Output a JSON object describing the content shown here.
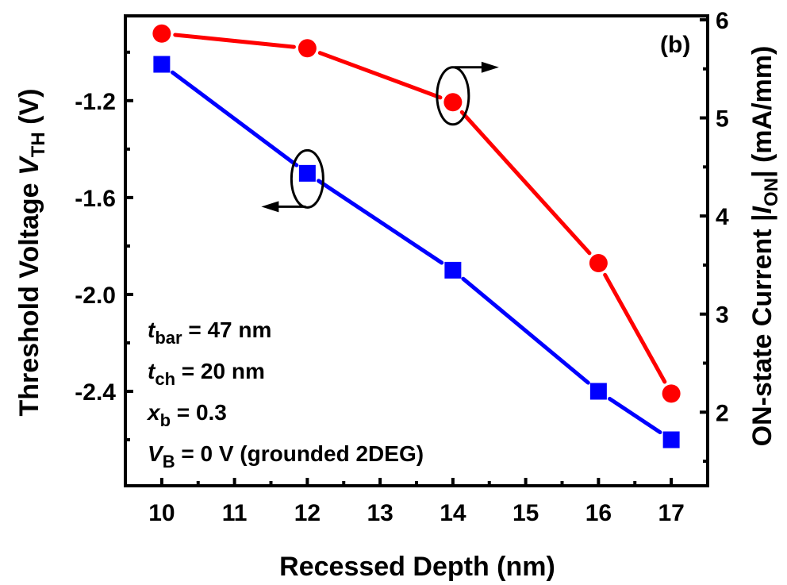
{
  "chart_data": {
    "type": "line",
    "panel_label": "(b)",
    "title": "",
    "xlabel": "Recessed Depth (nm)",
    "ylabel_left": {
      "main": "Threshold Voltage ",
      "var": "V",
      "sub": "TH",
      "tail": " (V)"
    },
    "ylabel_right": {
      "main": "ON-state Current |",
      "var": "I",
      "sub": "ON",
      "tail": "| (mA/mm)"
    },
    "x": [
      10,
      12,
      14,
      16,
      17
    ],
    "xlim": [
      9.5,
      17.5
    ],
    "xticks": [
      10,
      11,
      12,
      13,
      14,
      15,
      16,
      17
    ],
    "xtick_labels": [
      "10",
      "11",
      "12",
      "13",
      "14",
      "15",
      "16",
      "17"
    ],
    "ylim_left": [
      -2.79,
      -0.85
    ],
    "yticks_left": [
      -1.2,
      -1.6,
      -2.0,
      -2.4
    ],
    "ytick_labels_left": [
      "-1.2",
      "-1.6",
      "-2.0",
      "-2.4"
    ],
    "yminor_left": [
      -1.0,
      -1.4,
      -1.8,
      -2.2,
      -2.6
    ],
    "ylim_right": [
      1.25,
      6.04
    ],
    "yticks_right": [
      6,
      5,
      4,
      3,
      2
    ],
    "ytick_labels_right": [
      "6",
      "5",
      "4",
      "3",
      "2"
    ],
    "yminor_right": [
      5.5,
      4.5,
      3.5,
      2.5,
      1.5
    ],
    "grid": false,
    "series": [
      {
        "name": "Threshold Voltage V_TH",
        "axis": "left",
        "marker": "square",
        "color": "#0000ff",
        "values": [
          -1.05,
          -1.5,
          -1.9,
          -2.4,
          -2.6
        ]
      },
      {
        "name": "ON-state Current |I_ON|",
        "axis": "right",
        "marker": "circle",
        "color": "#ff0000",
        "values": [
          5.86,
          5.71,
          5.16,
          3.52,
          2.19
        ]
      }
    ],
    "annotations": [
      {
        "var": "t",
        "sub": "bar",
        "text": " = 47 nm"
      },
      {
        "var": "t",
        "sub": "ch",
        "text": " = 20 nm"
      },
      {
        "var": "x",
        "sub": "b",
        "text": " = 0.3"
      },
      {
        "var": "V",
        "sub": "B",
        "text": " = 0 V (grounded 2DEG)"
      }
    ],
    "axis_indicators": [
      {
        "series": "ON-state Current |I_ON|",
        "points_to": "right axis",
        "at_x": 14
      },
      {
        "series": "Threshold Voltage V_TH",
        "points_to": "left axis",
        "at_x": 12
      }
    ]
  }
}
